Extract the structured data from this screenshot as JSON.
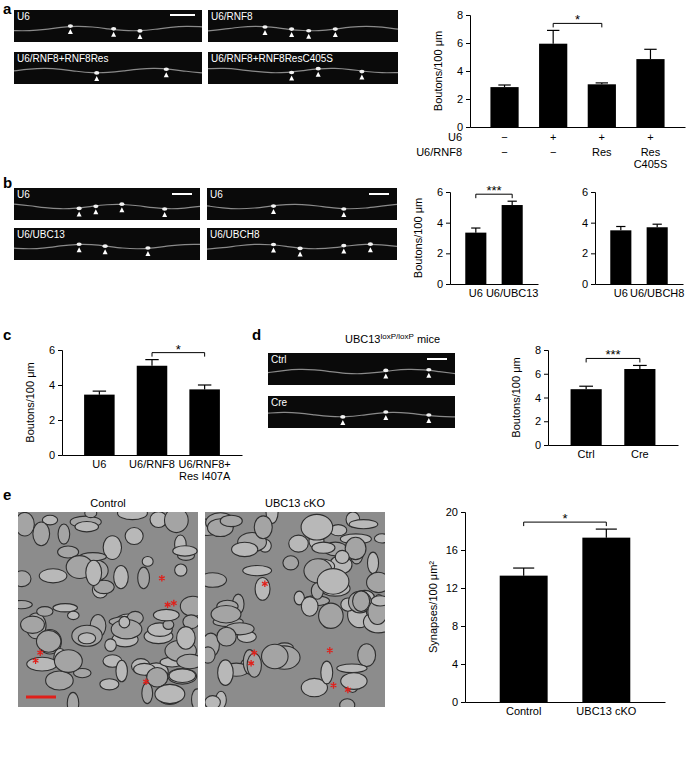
{
  "chart_data": [
    {
      "type": "bar",
      "categories": [
        null,
        null,
        null,
        null
      ],
      "values": [
        2.85,
        5.95,
        3.05,
        4.85
      ],
      "errors": [
        0.15,
        0.95,
        0.1,
        0.7
      ],
      "color": "#000000",
      "ylim": [
        0,
        8
      ],
      "yticks": [
        0,
        2,
        4,
        6,
        8
      ],
      "y_label": "Boutons/100 μm",
      "annotations": [
        {
          "text": "*",
          "from": 1,
          "to": 2
        }
      ],
      "x_table": [
        {
          "label": "U6",
          "cells": [
            "−",
            "+",
            "+",
            "+"
          ]
        },
        {
          "label": "U6/RNF8",
          "cells": [
            "−",
            "−",
            "Res",
            "Res\nC405S"
          ]
        }
      ]
    },
    {
      "type": "bar",
      "categories": [
        "U6",
        "U6/UBC13"
      ],
      "values": [
        3.35,
        5.15
      ],
      "errors": [
        0.3,
        0.25
      ],
      "color": "#000000",
      "ylim": [
        0,
        6
      ],
      "yticks": [
        0,
        2,
        4,
        6
      ],
      "y_label": "Boutons/100 μm",
      "annotations": [
        {
          "text": "***",
          "from": 0,
          "to": 1
        }
      ]
    },
    {
      "type": "bar",
      "categories": [
        "U6",
        "U6/UBCH8"
      ],
      "values": [
        3.5,
        3.7
      ],
      "errors": [
        0.25,
        0.2
      ],
      "color": "#000000",
      "ylim": [
        0,
        6
      ],
      "yticks": [
        0,
        2,
        4,
        6
      ]
    },
    {
      "type": "bar",
      "categories": [
        "U6",
        "U6/RNF8",
        "U6/RNF8+\nRes I407A"
      ],
      "values": [
        3.45,
        5.1,
        3.75
      ],
      "errors": [
        0.2,
        0.35,
        0.25
      ],
      "color": "#000000",
      "ylim": [
        0,
        6
      ],
      "yticks": [
        0,
        2,
        4,
        6
      ],
      "y_label": "Boutons/100 μm",
      "annotations": [
        {
          "text": "*",
          "from": 1,
          "to": 2
        }
      ]
    },
    {
      "type": "bar",
      "categories": [
        "Ctrl",
        "Cre"
      ],
      "values": [
        4.7,
        6.4
      ],
      "errors": [
        0.25,
        0.3
      ],
      "color": "#000000",
      "ylim": [
        0,
        8
      ],
      "yticks": [
        0,
        2,
        4,
        6,
        8
      ],
      "y_label": "Boutons/100 μm",
      "annotations": [
        {
          "text": "***",
          "from": 0,
          "to": 1
        }
      ]
    },
    {
      "type": "bar",
      "categories": [
        "Control",
        "UBC13 cKO"
      ],
      "values": [
        13.3,
        17.3
      ],
      "errors": [
        0.8,
        0.9
      ],
      "color": "#000000",
      "ylim": [
        0,
        20
      ],
      "yticks": [
        0,
        4,
        8,
        12,
        16,
        20
      ],
      "y_label": "Synapses/100 μm²",
      "annotations": [
        {
          "text": "*",
          "from": 0,
          "to": 1
        }
      ]
    }
  ],
  "panels": [
    {
      "letter": "a",
      "images": [
        "U6",
        "U6/RNF8",
        "U6/RNF8+RNF8Res",
        "U6/RNF8+RNF8ResC405S"
      ]
    },
    {
      "letter": "b",
      "images": [
        "U6",
        "U6",
        "U6/UBC13",
        "U6/UBCH8"
      ]
    },
    {
      "letter": "c"
    },
    {
      "letter": "d",
      "title": "UBC13",
      "title_sup": "loxP/loxP",
      "title_suffix": " mice",
      "images": [
        "Ctrl",
        "Cre"
      ]
    },
    {
      "letter": "e",
      "images": [
        "Control",
        "UBC13 cKO"
      ]
    }
  ]
}
